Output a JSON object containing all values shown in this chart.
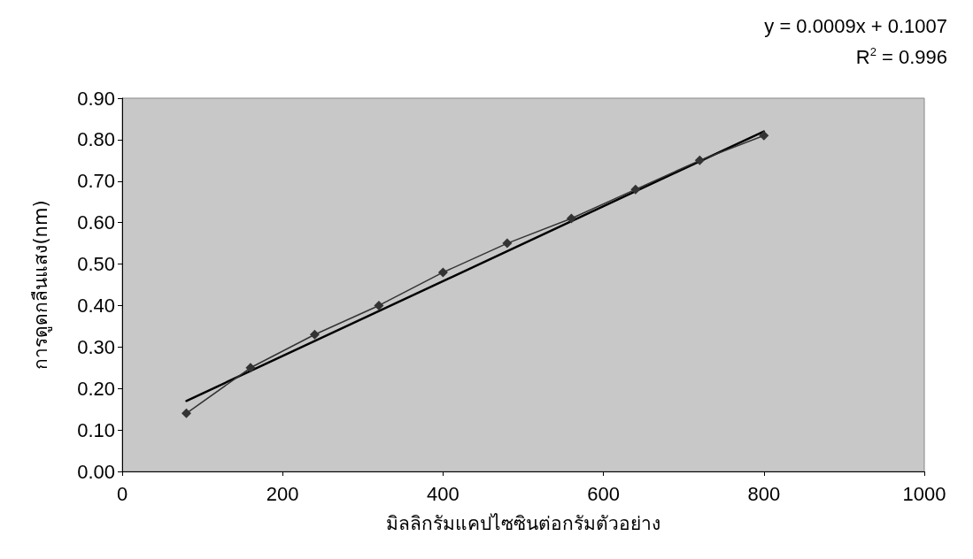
{
  "chart_data": {
    "type": "line",
    "xlabel": "มิลลิกรัมแคปไซซินต่อกรัมตัวอย่าง",
    "ylabel": "การดูดกลืนแสง(nm)",
    "annotations": [
      "y = 0.0009x + 0.1007",
      "R$^{2}$ = 0.996"
    ],
    "x": [
      80,
      160,
      240,
      320,
      400,
      480,
      560,
      640,
      720,
      800
    ],
    "series": [
      {
        "color": "#333333",
        "marker": "diamond",
        "values": [
          0.14,
          0.25,
          0.33,
          0.4,
          0.48,
          0.55,
          0.61,
          0.68,
          0.75,
          0.81
        ]
      },
      {
        "type": "line",
        "color": "#000000",
        "marker": "none",
        "x": [
          80,
          800
        ],
        "values": [
          0.17,
          0.82
        ]
      }
    ],
    "xlim": [
      0,
      1000
    ],
    "xticks": [
      0,
      200,
      400,
      600,
      800,
      1000
    ],
    "ylim": [
      0,
      0.9
    ],
    "yticks": [
      {
        "value": 0,
        "label": "0.00"
      },
      {
        "value": 0.1,
        "label": "0.10"
      },
      {
        "value": 0.2,
        "label": "0.20"
      },
      {
        "value": 0.3,
        "label": "0.30"
      },
      {
        "value": 0.4,
        "label": "0.40"
      },
      {
        "value": 0.5,
        "label": "0.50"
      },
      {
        "value": 0.6,
        "label": "0.60"
      },
      {
        "value": 0.7,
        "label": "0.70"
      },
      {
        "value": 0.8,
        "label": "0.80"
      },
      {
        "value": 0.9,
        "label": "0.90"
      }
    ],
    "grid": false
  }
}
